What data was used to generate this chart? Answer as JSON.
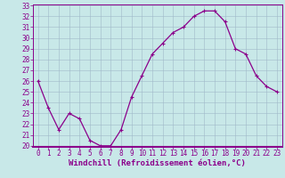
{
  "hours": [
    0,
    1,
    2,
    3,
    4,
    5,
    6,
    7,
    8,
    9,
    10,
    11,
    12,
    13,
    14,
    15,
    16,
    17,
    18,
    19,
    20,
    21,
    22,
    23
  ],
  "values": [
    26.0,
    23.5,
    21.5,
    23.0,
    22.5,
    20.5,
    20.0,
    20.0,
    21.5,
    24.5,
    26.5,
    28.5,
    29.5,
    30.5,
    31.0,
    32.0,
    32.5,
    32.5,
    31.5,
    29.0,
    28.5,
    26.5,
    25.5,
    25.0
  ],
  "line_color": "#8B008B",
  "marker": "+",
  "bg_color": "#c8e8e8",
  "grid_color": "#a0b8c8",
  "xlabel": "Windchill (Refroidissement éolien,°C)",
  "xlabel_color": "#8B008B",
  "ylim": [
    20,
    33
  ],
  "xlim": [
    -0.5,
    23.5
  ],
  "yticks": [
    20,
    21,
    22,
    23,
    24,
    25,
    26,
    27,
    28,
    29,
    30,
    31,
    32,
    33
  ],
  "xticks": [
    0,
    1,
    2,
    3,
    4,
    5,
    6,
    7,
    8,
    9,
    10,
    11,
    12,
    13,
    14,
    15,
    16,
    17,
    18,
    19,
    20,
    21,
    22,
    23
  ],
  "tick_color": "#8B008B",
  "axis_bg_color": "#c8e8e8",
  "spine_color": "#8B008B",
  "tick_labelsize": 5.5,
  "xlabel_fontsize": 6.5,
  "linewidth": 0.9,
  "markersize": 3.5,
  "markeredgewidth": 0.8
}
